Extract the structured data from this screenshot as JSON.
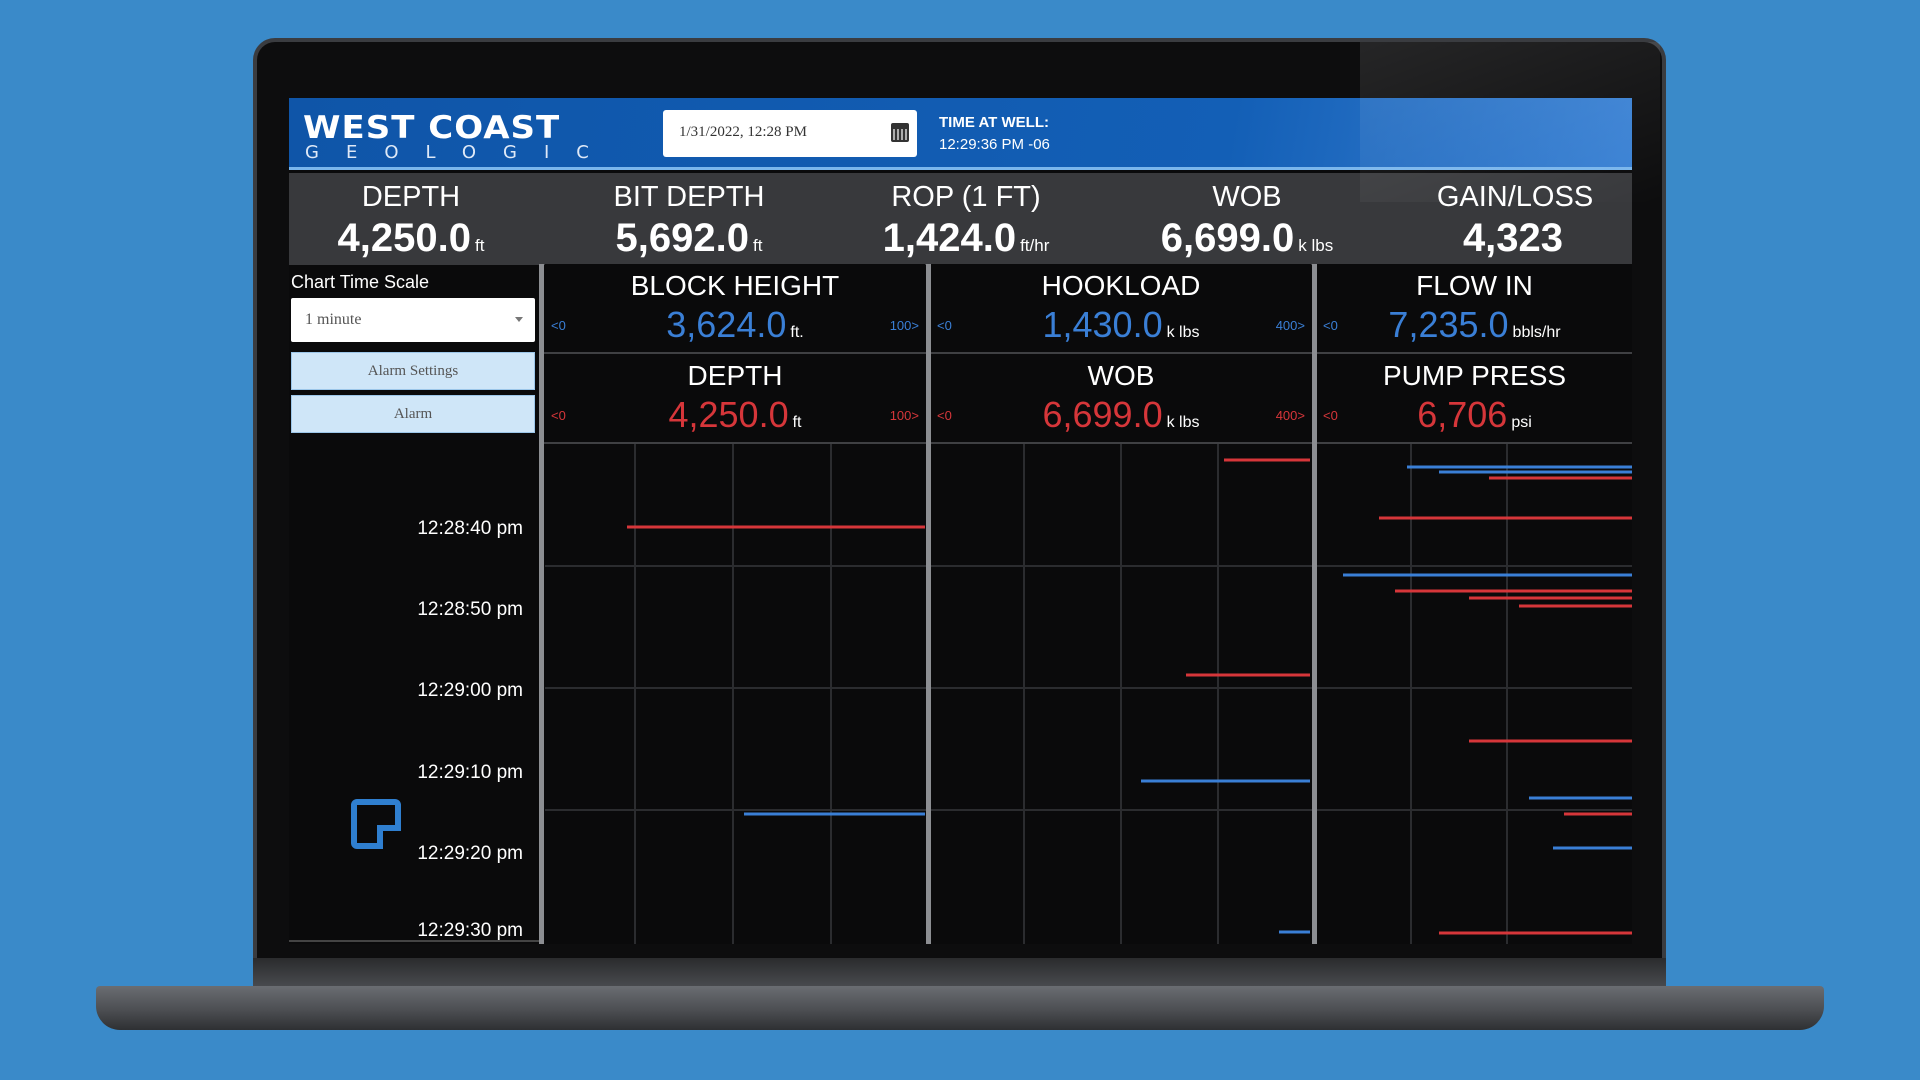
{
  "header": {
    "logo_main": "WEST COAST",
    "logo_sub": "GEOLOGIC",
    "date_value": "1/31/2022, 12:28 PM",
    "time_at_well_label": "TIME AT WELL:",
    "time_at_well_value": "12:29:36 PM -06"
  },
  "stats": [
    {
      "label": "DEPTH",
      "value": "4,250.0",
      "unit": "ft"
    },
    {
      "label": "BIT DEPTH",
      "value": "5,692.0",
      "unit": "ft"
    },
    {
      "label": "ROP (1 FT)",
      "value": "1,424.0",
      "unit": "ft/hr"
    },
    {
      "label": "WOB",
      "value": "6,699.0",
      "unit": "k lbs"
    },
    {
      "label": "GAIN/LOSS",
      "value": "4,323",
      "unit": ""
    }
  ],
  "left_panel": {
    "chart_time_scale_label": "Chart Time Scale",
    "time_scale_value": "1 minute",
    "alarm_settings_label": "Alarm Settings",
    "alarm_label": "Alarm",
    "time_ticks": [
      "12:28:40 pm",
      "12:28:50 pm",
      "12:29:00 pm",
      "12:29:10 pm",
      "12:29:20 pm",
      "12:29:30 pm"
    ]
  },
  "gauges": {
    "block_height": {
      "label": "BLOCK HEIGHT",
      "value": "3,624.0",
      "unit": "ft.",
      "min": "<0",
      "max": "100>"
    },
    "hookload": {
      "label": "HOOKLOAD",
      "value": "1,430.0",
      "unit": "k lbs",
      "min": "<0",
      "max": "400>"
    },
    "flow_in": {
      "label": "FLOW IN",
      "value": "7,235.0",
      "unit": "bbls/hr",
      "min": "<0",
      "max": ""
    },
    "depth": {
      "label": "DEPTH",
      "value": "4,250.0",
      "unit": "ft",
      "min": "<0",
      "max": "100>"
    },
    "wob": {
      "label": "WOB",
      "value": "6,699.0",
      "unit": "k lbs",
      "min": "<0",
      "max": "400>"
    },
    "pump_press": {
      "label": "PUMP PRESS",
      "value": "6,706",
      "unit": "psi",
      "min": "<0",
      "max": ""
    }
  },
  "colors": {
    "accent_blue": "#3a7fd6",
    "alarm_red": "#d6363a",
    "header_blue": "#135fb6"
  },
  "icons": [
    "calendar-icon",
    "chevron-down-icon",
    "note-icon"
  ]
}
